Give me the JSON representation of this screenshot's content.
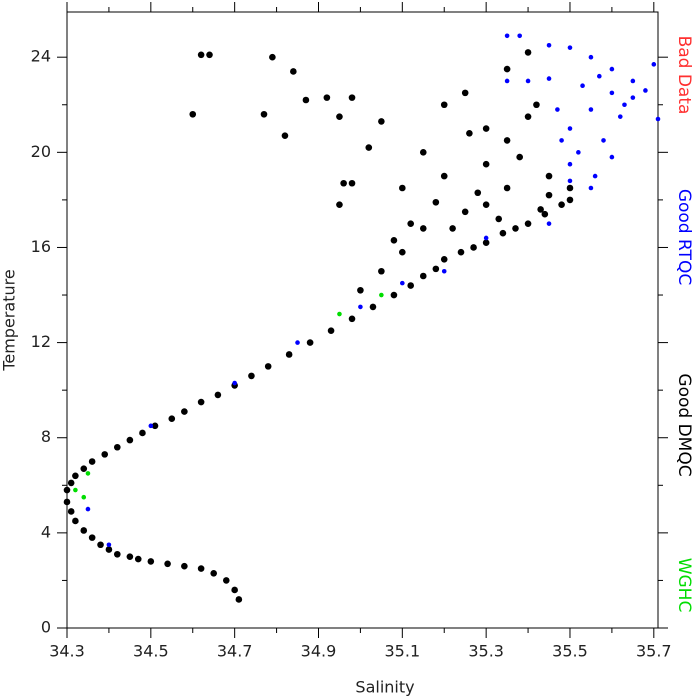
{
  "chart_data": {
    "type": "scatter",
    "x_label": "Salinity",
    "y_label": "Temperature",
    "xlim": [
      34.3,
      35.71
    ],
    "ylim": [
      0,
      25.9
    ],
    "xticks": [
      34.3,
      34.5,
      34.7,
      34.9,
      35.1,
      35.3,
      35.5,
      35.7
    ],
    "yticks": [
      0,
      4,
      8,
      12,
      16,
      20,
      24
    ],
    "xminorticks": [
      34.4,
      34.6,
      34.8,
      35.0,
      35.2,
      35.4,
      35.6
    ],
    "yminorticks": [
      2,
      6,
      10,
      14,
      18,
      22
    ],
    "series": [
      {
        "name": "Bad Data",
        "color": "#ff3030",
        "x": [],
        "y": []
      },
      {
        "name": "Good RTQC",
        "color": "#0000ff",
        "x": [
          35.35,
          35.38,
          35.45,
          35.5,
          35.55,
          35.6,
          35.65,
          35.7,
          35.71,
          35.6,
          35.55,
          35.5,
          35.52,
          35.58,
          35.62,
          35.65,
          35.5,
          35.56,
          35.48,
          35.6,
          35.45,
          35.4,
          35.35,
          35.55,
          35.5,
          35.2,
          35.0,
          34.85,
          34.7,
          34.5,
          34.35,
          34.4,
          35.3,
          35.45,
          35.1,
          35.53,
          35.57,
          35.63,
          35.68,
          35.47
        ],
        "y": [
          24.9,
          24.9,
          24.5,
          24.4,
          24.0,
          23.5,
          23.0,
          23.7,
          21.4,
          22.5,
          21.8,
          21.0,
          20.0,
          20.5,
          21.5,
          22.3,
          19.5,
          19.0,
          20.5,
          19.8,
          23.1,
          23.0,
          23.0,
          18.5,
          18.8,
          15.0,
          13.5,
          12.0,
          10.3,
          8.5,
          5.0,
          3.5,
          16.4,
          17.0,
          14.5,
          22.8,
          23.2,
          22.0,
          22.6,
          21.8
        ]
      },
      {
        "name": "Good DMQC",
        "color": "#000000",
        "x": [
          34.71,
          34.7,
          34.68,
          34.65,
          34.62,
          34.58,
          34.54,
          34.5,
          34.47,
          34.45,
          34.42,
          34.4,
          34.38,
          34.36,
          34.34,
          34.32,
          34.31,
          34.3,
          34.3,
          34.31,
          34.32,
          34.34,
          34.36,
          34.39,
          34.42,
          34.45,
          34.48,
          34.51,
          34.55,
          34.58,
          34.62,
          34.66,
          34.7,
          34.74,
          34.78,
          34.83,
          34.88,
          34.93,
          34.98,
          35.03,
          35.08,
          35.12,
          35.15,
          35.18,
          35.2,
          35.24,
          35.27,
          35.3,
          35.34,
          35.37,
          35.4,
          35.44,
          35.48,
          35.5,
          34.6,
          34.62,
          34.64,
          34.79,
          34.84,
          34.77,
          34.87,
          34.92,
          34.95,
          34.98,
          34.82,
          34.96,
          34.98,
          35.02,
          34.95,
          35.05,
          35.15,
          35.2,
          35.25,
          35.3,
          35.35,
          35.4,
          35.42,
          35.1,
          35.2,
          35.3,
          35.35,
          35.45,
          35.4,
          35.25,
          35.15,
          35.05,
          35.0,
          35.1,
          35.3,
          35.35,
          35.45,
          35.5,
          35.22,
          35.28,
          35.12,
          35.38,
          35.18,
          35.33,
          35.26,
          35.43,
          35.08
        ],
        "y": [
          1.2,
          1.6,
          2.0,
          2.3,
          2.5,
          2.6,
          2.7,
          2.8,
          2.9,
          3.0,
          3.1,
          3.3,
          3.5,
          3.8,
          4.1,
          4.5,
          4.9,
          5.3,
          5.8,
          6.1,
          6.4,
          6.7,
          7.0,
          7.3,
          7.6,
          7.9,
          8.2,
          8.5,
          8.8,
          9.1,
          9.5,
          9.8,
          10.2,
          10.6,
          11.0,
          11.5,
          12.0,
          12.5,
          13.0,
          13.5,
          14.0,
          14.4,
          14.8,
          15.1,
          15.5,
          15.8,
          16.0,
          16.2,
          16.6,
          16.8,
          17.0,
          17.4,
          17.8,
          18.5,
          21.6,
          24.1,
          24.1,
          24.0,
          23.4,
          21.6,
          22.2,
          22.3,
          21.5,
          22.3,
          20.7,
          18.7,
          18.7,
          20.2,
          17.8,
          21.3,
          20.0,
          22.0,
          22.5,
          21.0,
          23.5,
          24.2,
          22.0,
          18.5,
          19.0,
          19.5,
          20.5,
          19.0,
          21.5,
          17.5,
          16.8,
          15.0,
          14.2,
          15.8,
          17.8,
          18.5,
          18.2,
          18.0,
          16.8,
          18.3,
          17.0,
          19.8,
          17.9,
          17.2,
          20.8,
          17.6,
          16.3
        ]
      },
      {
        "name": "WGHC",
        "color": "#00dd00",
        "x": [
          34.35,
          34.32,
          35.05,
          34.95,
          34.34
        ],
        "y": [
          6.5,
          5.8,
          14.0,
          13.2,
          5.5
        ]
      }
    ]
  }
}
